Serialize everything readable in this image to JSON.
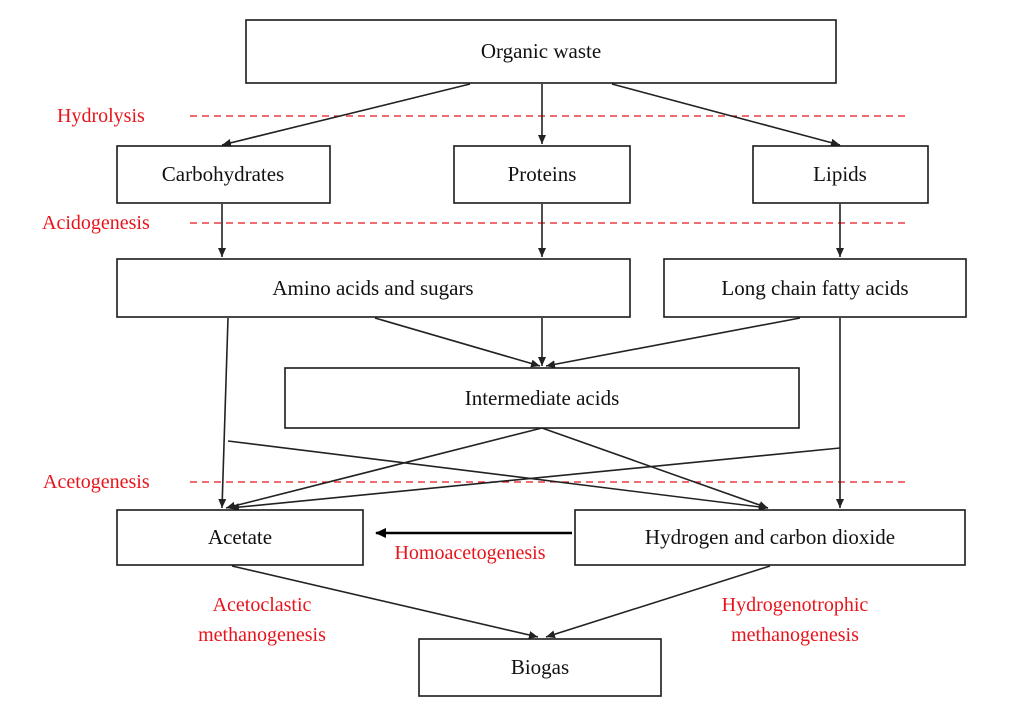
{
  "colors": {
    "stage": "#e8141b",
    "box_border": "#1a1a1a",
    "text": "#111111",
    "arrow": "#222222"
  },
  "nodes": {
    "organic_waste": "Organic waste",
    "carbohydrates": "Carbohydrates",
    "proteins": "Proteins",
    "lipids": "Lipids",
    "amino_acids_sugars": "Amino acids and sugars",
    "long_chain_fatty_acids": "Long chain fatty acids",
    "intermediate_acids": "Intermediate acids",
    "acetate": "Acetate",
    "hydrogen_co2": "Hydrogen and carbon dioxide",
    "biogas": "Biogas"
  },
  "stages": {
    "hydrolysis": "Hydrolysis",
    "acidogenesis": "Acidogenesis",
    "acetogenesis": "Acetogenesis",
    "homoacetogenesis": "Homoacetogenesis",
    "acetoclastic_line1": "Acetoclastic",
    "acetoclastic_line2": "methanogenesis",
    "hydrogenotrophic_line1": "Hydrogenotrophic",
    "hydrogenotrophic_line2": "methanogenesis"
  }
}
